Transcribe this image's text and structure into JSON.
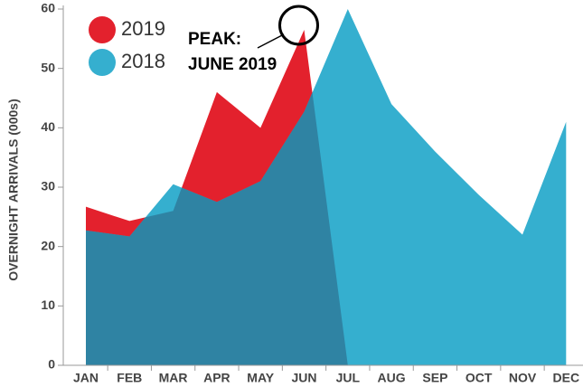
{
  "chart_data": {
    "type": "area",
    "y_label": "OVERNIGHT ARRIVALS (000s)",
    "categories": [
      "JAN",
      "FEB",
      "MAR",
      "APR",
      "MAY",
      "JUN",
      "JUL",
      "AUG",
      "SEP",
      "OCT",
      "NOV",
      "DEC"
    ],
    "series": [
      {
        "name": "2019",
        "color": "#e3212d",
        "values": [
          26.7,
          24.3,
          26,
          46,
          40,
          56.5,
          0,
          null,
          null,
          null,
          null,
          null
        ]
      },
      {
        "name": "2018",
        "color": "#35afcf",
        "values": [
          22.7,
          21.7,
          30.5,
          27.5,
          31,
          42.7,
          60,
          44,
          36,
          28.7,
          22,
          41
        ]
      }
    ],
    "overlap_color": "#2f83a3",
    "ylim": [
      0,
      60
    ],
    "yticks": [
      0,
      10,
      20,
      30,
      40,
      50,
      60
    ],
    "annotation": [
      "PEAK:",
      "JUNE 2019"
    ]
  }
}
